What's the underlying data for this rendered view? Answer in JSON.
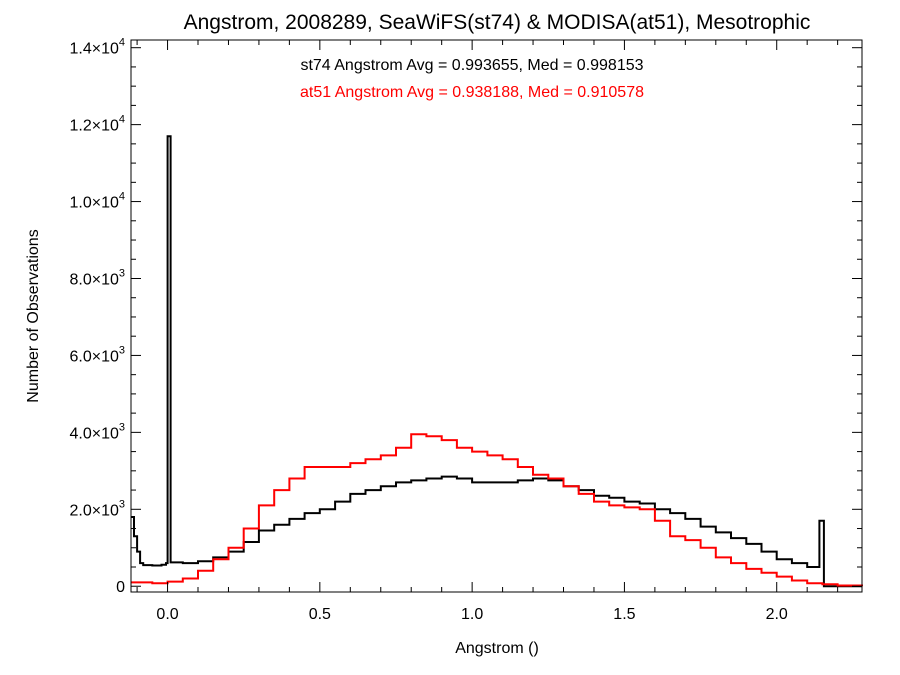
{
  "chart_data": {
    "type": "line",
    "title": "Angstrom, 2008289, SeaWiFS(st74) & MODISA(at51), Mesotrophic",
    "xlabel": "Angstrom ()",
    "ylabel": "Number of Observations",
    "xlim": [
      -0.12,
      2.28
    ],
    "ylim": [
      -150,
      14200
    ],
    "xticks": [
      {
        "value": 0.0,
        "label": "0.0"
      },
      {
        "value": 0.5,
        "label": "0.5"
      },
      {
        "value": 1.0,
        "label": "1.0"
      },
      {
        "value": 1.5,
        "label": "1.5"
      },
      {
        "value": 2.0,
        "label": "2.0"
      }
    ],
    "yticks": [
      {
        "value": 0,
        "mant": "0",
        "exp": ""
      },
      {
        "value": 2000,
        "mant": "2.0×10",
        "exp": "3"
      },
      {
        "value": 4000,
        "mant": "4.0×10",
        "exp": "3"
      },
      {
        "value": 6000,
        "mant": "6.0×10",
        "exp": "3"
      },
      {
        "value": 8000,
        "mant": "8.0×10",
        "exp": "3"
      },
      {
        "value": 10000,
        "mant": "1.0×10",
        "exp": "4"
      },
      {
        "value": 12000,
        "mant": "1.2×10",
        "exp": "4"
      },
      {
        "value": 14000,
        "mant": "1.4×10",
        "exp": "4"
      }
    ],
    "grid": false,
    "step": true,
    "annotations": [
      {
        "text": "st74 Angstrom Avg = 0.993655, Med = 0.998153",
        "color": "#000000"
      },
      {
        "text": "at51 Angstrom Avg = 0.938188, Med = 0.910578",
        "color": "#ff0000"
      }
    ],
    "series": [
      {
        "color": "#000000",
        "points": [
          [
            -0.12,
            1800
          ],
          [
            -0.11,
            1300
          ],
          [
            -0.1,
            900
          ],
          [
            -0.09,
            600
          ],
          [
            -0.08,
            550
          ],
          [
            -0.05,
            540
          ],
          [
            -0.02,
            560
          ],
          [
            -0.005,
            600
          ],
          [
            0.0,
            11700
          ],
          [
            0.01,
            620
          ],
          [
            0.05,
            600
          ],
          [
            0.1,
            650
          ],
          [
            0.15,
            750
          ],
          [
            0.2,
            900
          ],
          [
            0.25,
            1150
          ],
          [
            0.3,
            1450
          ],
          [
            0.35,
            1600
          ],
          [
            0.4,
            1750
          ],
          [
            0.45,
            1900
          ],
          [
            0.5,
            2000
          ],
          [
            0.55,
            2200
          ],
          [
            0.6,
            2400
          ],
          [
            0.65,
            2500
          ],
          [
            0.7,
            2600
          ],
          [
            0.75,
            2700
          ],
          [
            0.8,
            2750
          ],
          [
            0.85,
            2800
          ],
          [
            0.9,
            2850
          ],
          [
            0.95,
            2800
          ],
          [
            1.0,
            2700
          ],
          [
            1.05,
            2700
          ],
          [
            1.1,
            2700
          ],
          [
            1.15,
            2750
          ],
          [
            1.2,
            2800
          ],
          [
            1.25,
            2750
          ],
          [
            1.3,
            2600
          ],
          [
            1.35,
            2500
          ],
          [
            1.4,
            2350
          ],
          [
            1.45,
            2300
          ],
          [
            1.5,
            2200
          ],
          [
            1.55,
            2150
          ],
          [
            1.6,
            2000
          ],
          [
            1.65,
            1900
          ],
          [
            1.7,
            1750
          ],
          [
            1.75,
            1550
          ],
          [
            1.8,
            1400
          ],
          [
            1.85,
            1250
          ],
          [
            1.9,
            1100
          ],
          [
            1.95,
            900
          ],
          [
            2.0,
            700
          ],
          [
            2.05,
            600
          ],
          [
            2.1,
            500
          ],
          [
            2.13,
            500
          ],
          [
            2.14,
            1700
          ],
          [
            2.155,
            0
          ],
          [
            2.2,
            0
          ]
        ]
      },
      {
        "color": "#ff0000",
        "points": [
          [
            -0.12,
            100
          ],
          [
            -0.1,
            100
          ],
          [
            -0.05,
            80
          ],
          [
            -0.02,
            80
          ],
          [
            0.0,
            120
          ],
          [
            0.05,
            200
          ],
          [
            0.1,
            400
          ],
          [
            0.15,
            700
          ],
          [
            0.2,
            1000
          ],
          [
            0.25,
            1500
          ],
          [
            0.3,
            2100
          ],
          [
            0.35,
            2500
          ],
          [
            0.4,
            2800
          ],
          [
            0.45,
            3100
          ],
          [
            0.5,
            3100
          ],
          [
            0.55,
            3100
          ],
          [
            0.6,
            3200
          ],
          [
            0.65,
            3300
          ],
          [
            0.7,
            3400
          ],
          [
            0.75,
            3600
          ],
          [
            0.8,
            3950
          ],
          [
            0.85,
            3900
          ],
          [
            0.9,
            3800
          ],
          [
            0.95,
            3600
          ],
          [
            1.0,
            3500
          ],
          [
            1.05,
            3400
          ],
          [
            1.1,
            3300
          ],
          [
            1.15,
            3100
          ],
          [
            1.2,
            2900
          ],
          [
            1.25,
            2800
          ],
          [
            1.3,
            2600
          ],
          [
            1.35,
            2400
          ],
          [
            1.4,
            2200
          ],
          [
            1.45,
            2100
          ],
          [
            1.5,
            2050
          ],
          [
            1.55,
            2000
          ],
          [
            1.6,
            1700
          ],
          [
            1.65,
            1300
          ],
          [
            1.7,
            1200
          ],
          [
            1.75,
            1000
          ],
          [
            1.8,
            750
          ],
          [
            1.85,
            600
          ],
          [
            1.9,
            450
          ],
          [
            1.95,
            350
          ],
          [
            2.0,
            250
          ],
          [
            2.05,
            150
          ],
          [
            2.1,
            80
          ],
          [
            2.15,
            50
          ],
          [
            2.2,
            20
          ],
          [
            2.28,
            0
          ]
        ]
      }
    ]
  }
}
